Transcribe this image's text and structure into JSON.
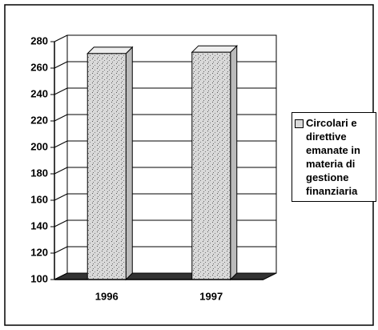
{
  "chart_data": {
    "type": "bar",
    "categories": [
      "1996",
      "1997"
    ],
    "series": [
      {
        "name": "Circolari e direttive emanate in materia di gestione finanziaria",
        "color": "#d9d9d9",
        "values": [
          271,
          272
        ]
      }
    ],
    "ylim": [
      100,
      280
    ],
    "yticks": [
      100,
      120,
      140,
      160,
      180,
      200,
      220,
      240,
      260,
      280
    ],
    "grid": true,
    "legend": "right"
  }
}
